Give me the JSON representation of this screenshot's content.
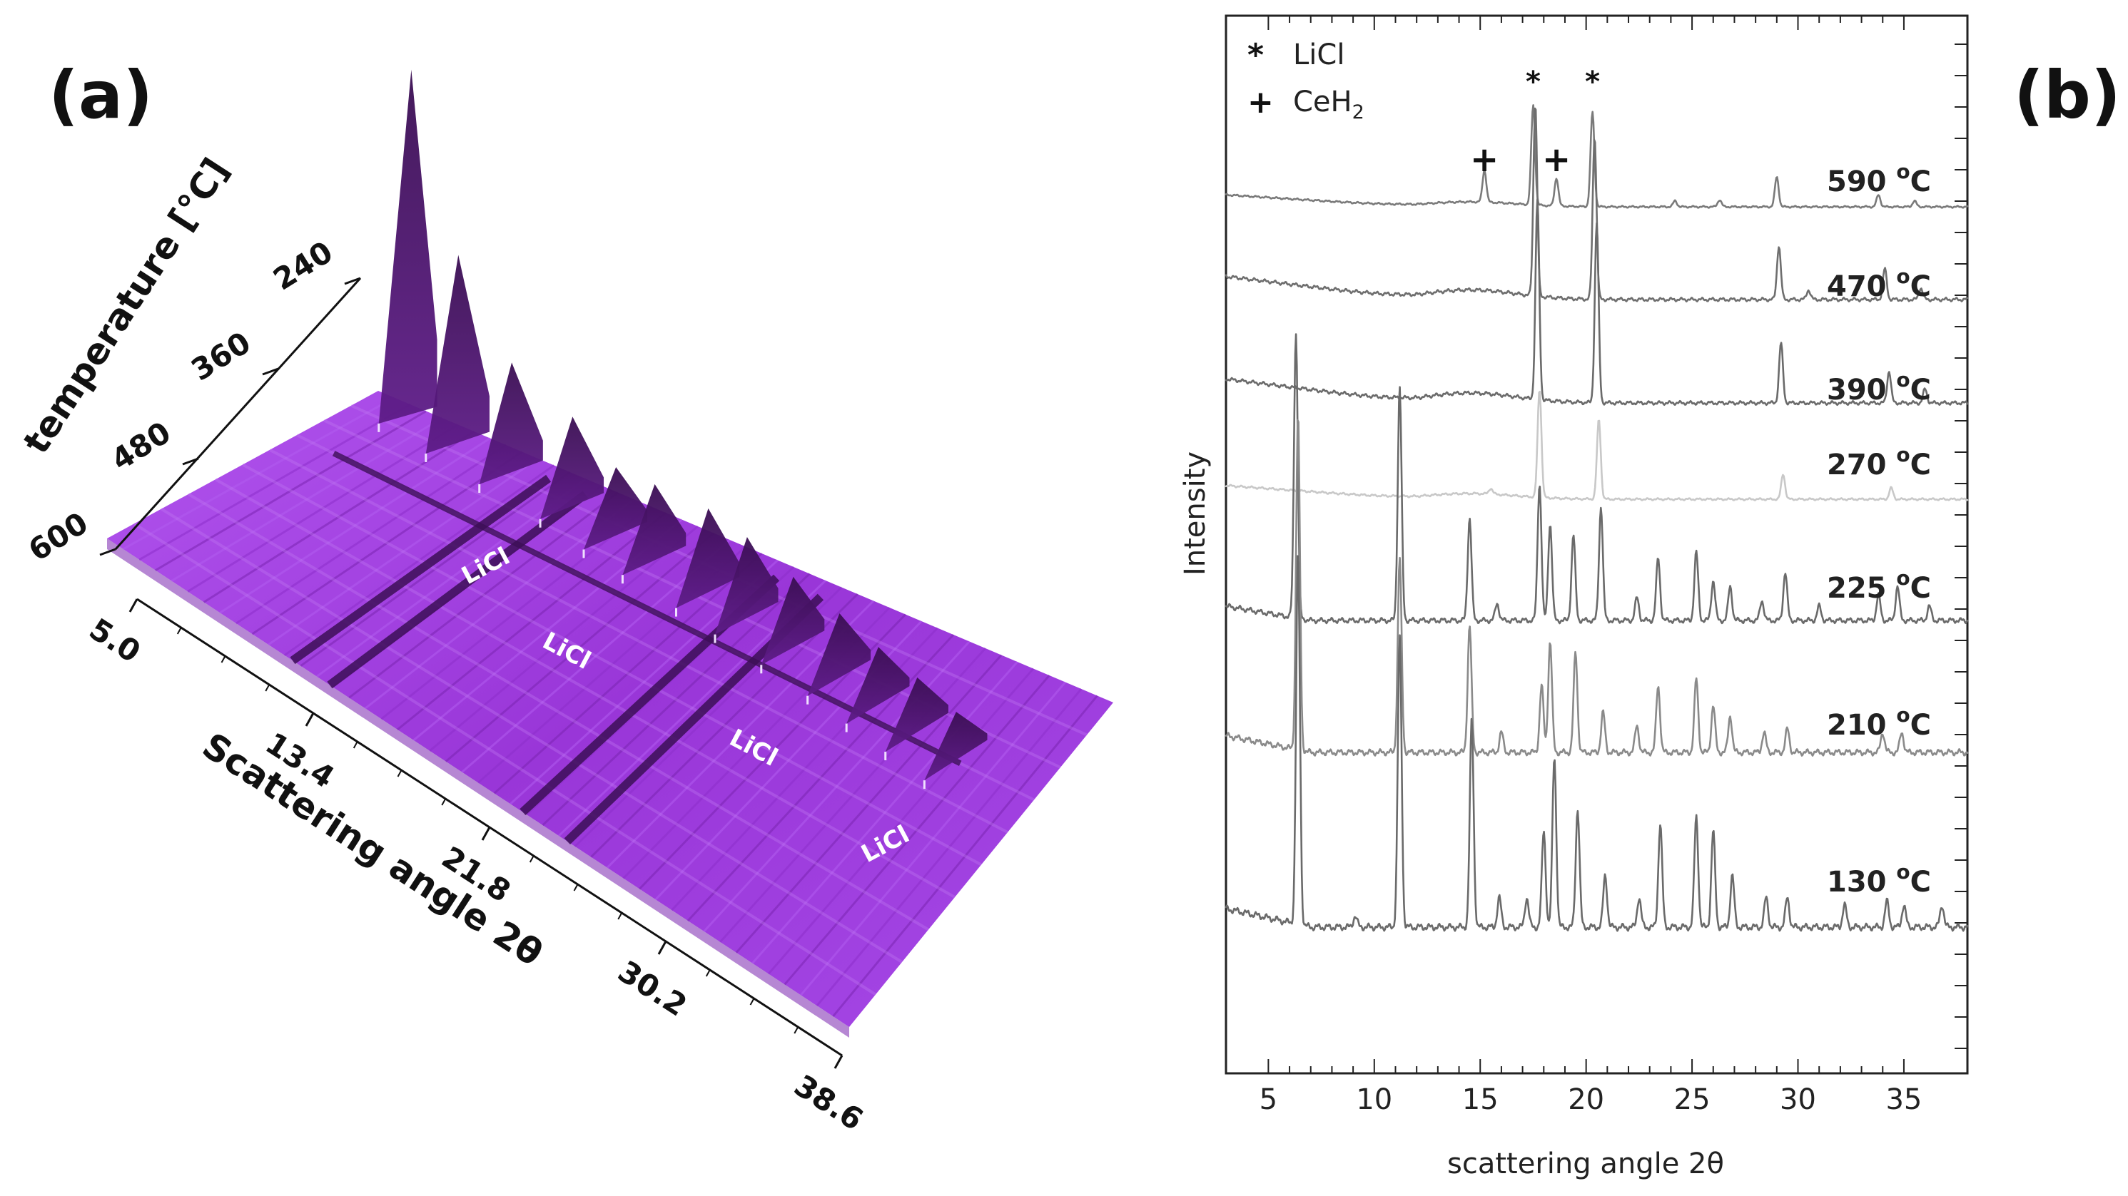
{
  "panel_a": {
    "label": "(a)",
    "temperature_axis_label": "temperature [°C]",
    "temperature_ticks": [
      "240",
      "360",
      "480",
      "600"
    ],
    "angle_axis_label": "Scattering angle 2θ",
    "angle_ticks": [
      "5.0",
      "13.4",
      "21.8",
      "30.2",
      "38.6"
    ],
    "licl_label": "LiCl",
    "surface_color": "#9b34d9",
    "surface_shadow_color": "#4a1468"
  },
  "panel_b": {
    "label": "(b)"
  },
  "chart_data": {
    "type": "line",
    "title": "",
    "xlabel": "scattering angle 2θ",
    "ylabel": "Intensity",
    "xlim": [
      3,
      38
    ],
    "xticks": [
      "5",
      "10",
      "15",
      "20",
      "25",
      "30",
      "35"
    ],
    "legend": [
      {
        "symbol": "*",
        "name": "LiCl"
      },
      {
        "symbol": "+",
        "name": "CeH",
        "subscript": "2"
      }
    ],
    "series": [
      {
        "name": "590 °C",
        "temp_value": "590",
        "temp_unit_sup": "o",
        "temp_unit": "C",
        "color": "#7a7a7a",
        "peaks": [
          [
            15.2,
            0.32
          ],
          [
            17.5,
            1.0
          ],
          [
            18.6,
            0.28
          ],
          [
            20.3,
            0.95
          ],
          [
            29.0,
            0.3
          ],
          [
            33.8,
            0.12
          ],
          [
            24.2,
            0.06
          ],
          [
            26.3,
            0.07
          ],
          [
            35.5,
            0.06
          ]
        ]
      },
      {
        "name": "470 °C",
        "temp_value": "470",
        "temp_unit_sup": "o",
        "temp_unit": "C",
        "color": "#6e6e6e",
        "peaks": [
          [
            17.6,
            1.0
          ],
          [
            20.4,
            0.85
          ],
          [
            29.1,
            0.28
          ],
          [
            34.1,
            0.16
          ],
          [
            35.8,
            0.06
          ],
          [
            30.5,
            0.05
          ]
        ]
      },
      {
        "name": "390 °C",
        "temp_value": "390",
        "temp_unit_sup": "o",
        "temp_unit": "C",
        "color": "#6a6a6a",
        "peaks": [
          [
            17.7,
            1.0
          ],
          [
            20.5,
            0.9
          ],
          [
            29.2,
            0.3
          ],
          [
            34.3,
            0.16
          ],
          [
            36.0,
            0.07
          ]
        ]
      },
      {
        "name": "270 °C",
        "temp_value": "270",
        "temp_unit_sup": "o",
        "temp_unit": "C",
        "color": "#c8c8c8",
        "peaks": [
          [
            17.8,
            0.95
          ],
          [
            20.6,
            0.7
          ],
          [
            29.3,
            0.22
          ],
          [
            34.4,
            0.1
          ],
          [
            15.5,
            0.05
          ]
        ]
      },
      {
        "name": "225 °C",
        "temp_value": "225",
        "temp_unit_sup": "o",
        "temp_unit": "C",
        "color": "#6a6a6a",
        "peaks": [
          [
            6.3,
            1.0
          ],
          [
            11.2,
            0.82
          ],
          [
            14.5,
            0.36
          ],
          [
            15.8,
            0.06
          ],
          [
            17.8,
            0.48
          ],
          [
            18.3,
            0.34
          ],
          [
            19.4,
            0.3
          ],
          [
            20.7,
            0.4
          ],
          [
            22.4,
            0.08
          ],
          [
            23.4,
            0.22
          ],
          [
            25.2,
            0.24
          ],
          [
            26.0,
            0.14
          ],
          [
            26.8,
            0.12
          ],
          [
            28.3,
            0.07
          ],
          [
            29.4,
            0.17
          ],
          [
            31.0,
            0.05
          ],
          [
            33.8,
            0.09
          ],
          [
            34.7,
            0.12
          ],
          [
            36.2,
            0.05
          ]
        ]
      },
      {
        "name": "210 °C",
        "temp_value": "210",
        "temp_unit_sup": "o",
        "temp_unit": "C",
        "color": "#8a8a8a",
        "peaks": [
          [
            6.4,
            1.0
          ],
          [
            11.2,
            0.58
          ],
          [
            14.5,
            0.38
          ],
          [
            16.0,
            0.06
          ],
          [
            17.9,
            0.2
          ],
          [
            18.3,
            0.33
          ],
          [
            19.5,
            0.3
          ],
          [
            20.8,
            0.12
          ],
          [
            22.4,
            0.08
          ],
          [
            23.4,
            0.2
          ],
          [
            25.2,
            0.22
          ],
          [
            26.0,
            0.14
          ],
          [
            26.8,
            0.11
          ],
          [
            28.4,
            0.06
          ],
          [
            29.5,
            0.07
          ],
          [
            34.0,
            0.06
          ],
          [
            34.9,
            0.06
          ]
        ]
      },
      {
        "name": "130 °C",
        "temp_value": "130",
        "temp_unit_sup": "o",
        "temp_unit": "C",
        "color": "#6a6a6a",
        "peaks": [
          [
            6.4,
            1.0
          ],
          [
            11.2,
            0.78
          ],
          [
            14.6,
            0.56
          ],
          [
            15.9,
            0.08
          ],
          [
            17.2,
            0.08
          ],
          [
            18.0,
            0.26
          ],
          [
            18.5,
            0.46
          ],
          [
            19.6,
            0.32
          ],
          [
            20.9,
            0.14
          ],
          [
            22.5,
            0.08
          ],
          [
            23.5,
            0.28
          ],
          [
            25.2,
            0.3
          ],
          [
            26.0,
            0.26
          ],
          [
            26.9,
            0.14
          ],
          [
            28.5,
            0.08
          ],
          [
            29.5,
            0.08
          ],
          [
            32.2,
            0.06
          ],
          [
            34.2,
            0.07
          ],
          [
            35.0,
            0.06
          ],
          [
            36.8,
            0.06
          ],
          [
            9.1,
            0.03
          ]
        ]
      }
    ],
    "annotations": [
      {
        "symbol": "+",
        "x": 15.2,
        "series": "590 °C"
      },
      {
        "symbol": "*",
        "x": 17.5,
        "series": "590 °C"
      },
      {
        "symbol": "+",
        "x": 18.6,
        "series": "590 °C"
      },
      {
        "symbol": "*",
        "x": 20.3,
        "series": "590 °C"
      }
    ]
  }
}
